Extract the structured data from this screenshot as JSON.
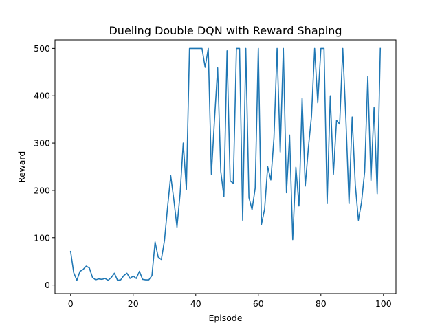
{
  "chart_data": {
    "type": "line",
    "title": "Dueling Double DQN with Reward Shaping",
    "xlabel": "Episode",
    "ylabel": "Reward",
    "xlim": [
      -5,
      104
    ],
    "ylim": [
      -18,
      518
    ],
    "xticks": [
      0,
      20,
      40,
      60,
      80,
      100
    ],
    "yticks": [
      0,
      100,
      200,
      300,
      400,
      500
    ],
    "grid": false,
    "legend": "none",
    "series": [
      {
        "color": "#1f77b4",
        "x": [
          0,
          1,
          2,
          3,
          4,
          5,
          6,
          7,
          8,
          9,
          10,
          11,
          12,
          13,
          14,
          15,
          16,
          17,
          18,
          19,
          20,
          21,
          22,
          23,
          24,
          25,
          26,
          27,
          28,
          29,
          30,
          31,
          32,
          33,
          34,
          35,
          36,
          37,
          38,
          39,
          40,
          41,
          42,
          43,
          44,
          45,
          46,
          47,
          48,
          49,
          50,
          51,
          52,
          53,
          54,
          55,
          56,
          57,
          58,
          59,
          60,
          61,
          62,
          63,
          64,
          65,
          66,
          67,
          68,
          69,
          70,
          71,
          72,
          73,
          74,
          75,
          76,
          77,
          78,
          79,
          80,
          81,
          82,
          83,
          84,
          85,
          86,
          87,
          88,
          89,
          90,
          91,
          92,
          93,
          94,
          95,
          96,
          97,
          98,
          99
        ],
        "y": [
          71,
          26,
          10,
          29,
          33,
          40,
          36,
          16,
          11,
          13,
          12,
          14,
          10,
          16,
          25,
          10,
          11,
          20,
          25,
          14,
          19,
          14,
          29,
          12,
          11,
          11,
          20,
          91,
          59,
          54,
          94,
          165,
          231,
          180,
          122,
          193,
          300,
          202,
          500,
          500,
          500,
          500,
          500,
          460,
          500,
          234,
          350,
          459,
          240,
          187,
          495,
          220,
          215,
          500,
          500,
          137,
          500,
          185,
          159,
          205,
          500,
          128,
          160,
          250,
          222,
          311,
          500,
          281,
          500,
          195,
          317,
          96,
          249,
          167,
          395,
          209,
          290,
          357,
          500,
          385,
          500,
          500,
          172,
          400,
          234,
          348,
          340,
          500,
          350,
          172,
          355,
          212,
          137,
          175,
          240,
          441,
          221,
          375,
          193,
          500
        ]
      }
    ]
  }
}
